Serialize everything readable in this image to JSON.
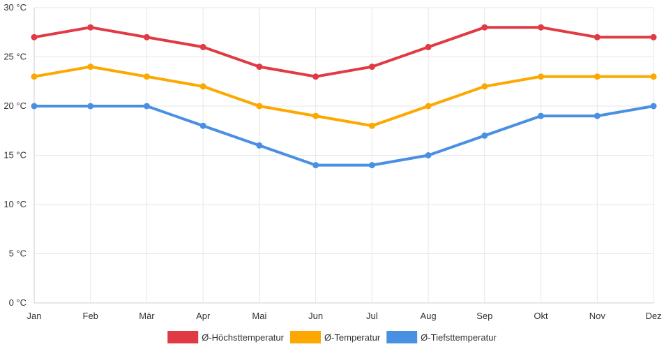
{
  "chart_data": {
    "type": "line",
    "title": "",
    "xlabel": "",
    "ylabel": "",
    "categories": [
      "Jan",
      "Feb",
      "Mär",
      "Apr",
      "Mai",
      "Jun",
      "Jul",
      "Aug",
      "Sep",
      "Okt",
      "Nov",
      "Dez"
    ],
    "ylim": [
      0,
      30
    ],
    "ytick_step": 5,
    "y_unit": " °C",
    "grid": true,
    "legend_position": "bottom-center",
    "series": [
      {
        "name": "Ø-Höchsttemperatur",
        "color": "#e03a45",
        "values": [
          27,
          28,
          27,
          26,
          24,
          23,
          24,
          26,
          28,
          28,
          27,
          27
        ]
      },
      {
        "name": "Ø-Temperatur",
        "color": "#fca800",
        "values": [
          23,
          24,
          23,
          22,
          20,
          19,
          18,
          20,
          22,
          23,
          23,
          23
        ]
      },
      {
        "name": "Ø-Tiefsttemperatur",
        "color": "#4a90e2",
        "values": [
          20,
          20,
          20,
          18,
          16,
          14,
          14,
          15,
          17,
          19,
          19,
          20
        ]
      }
    ]
  }
}
